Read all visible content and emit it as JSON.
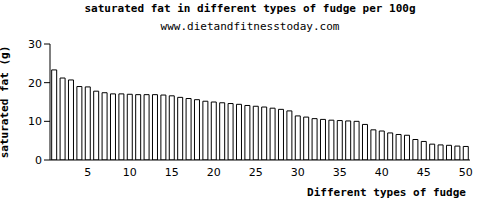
{
  "chart_data": {
    "type": "bar",
    "title": "saturated fat in different types of fudge per 100g",
    "subtitle": "www.dietandfitnesstoday.com",
    "x_label": "Different types of fudge",
    "y_label": "saturated fat (g)",
    "categories": [
      null,
      null,
      null,
      null,
      "5",
      null,
      null,
      null,
      null,
      "10",
      null,
      null,
      null,
      null,
      "15",
      null,
      null,
      null,
      null,
      "20",
      null,
      null,
      null,
      null,
      "25",
      null,
      null,
      null,
      null,
      "30",
      null,
      null,
      null,
      null,
      "35",
      null,
      null,
      null,
      null,
      "40",
      null,
      null,
      null,
      null,
      "45",
      null,
      null,
      null,
      null,
      "50"
    ],
    "values": [
      23.3,
      21.2,
      20.7,
      19,
      18.9,
      17.8,
      17.4,
      17.1,
      17.1,
      17,
      16.9,
      16.9,
      16.9,
      16.8,
      16.6,
      16.2,
      15.9,
      15.6,
      15.2,
      15,
      14.8,
      14.6,
      14.4,
      14.1,
      13.9,
      13.7,
      13.4,
      13.1,
      12.7,
      11.4,
      11.1,
      10.7,
      10.5,
      10.3,
      10.2,
      10.1,
      10,
      9.2,
      7.8,
      7.5,
      7,
      6.6,
      6.4,
      5.3,
      4.8,
      4.1,
      3.9,
      3.8,
      3.6,
      3.5
    ],
    "color": "#000000",
    "ylim": [
      0,
      30
    ],
    "yticks": [
      0,
      10,
      20,
      30
    ],
    "grid": false
  }
}
